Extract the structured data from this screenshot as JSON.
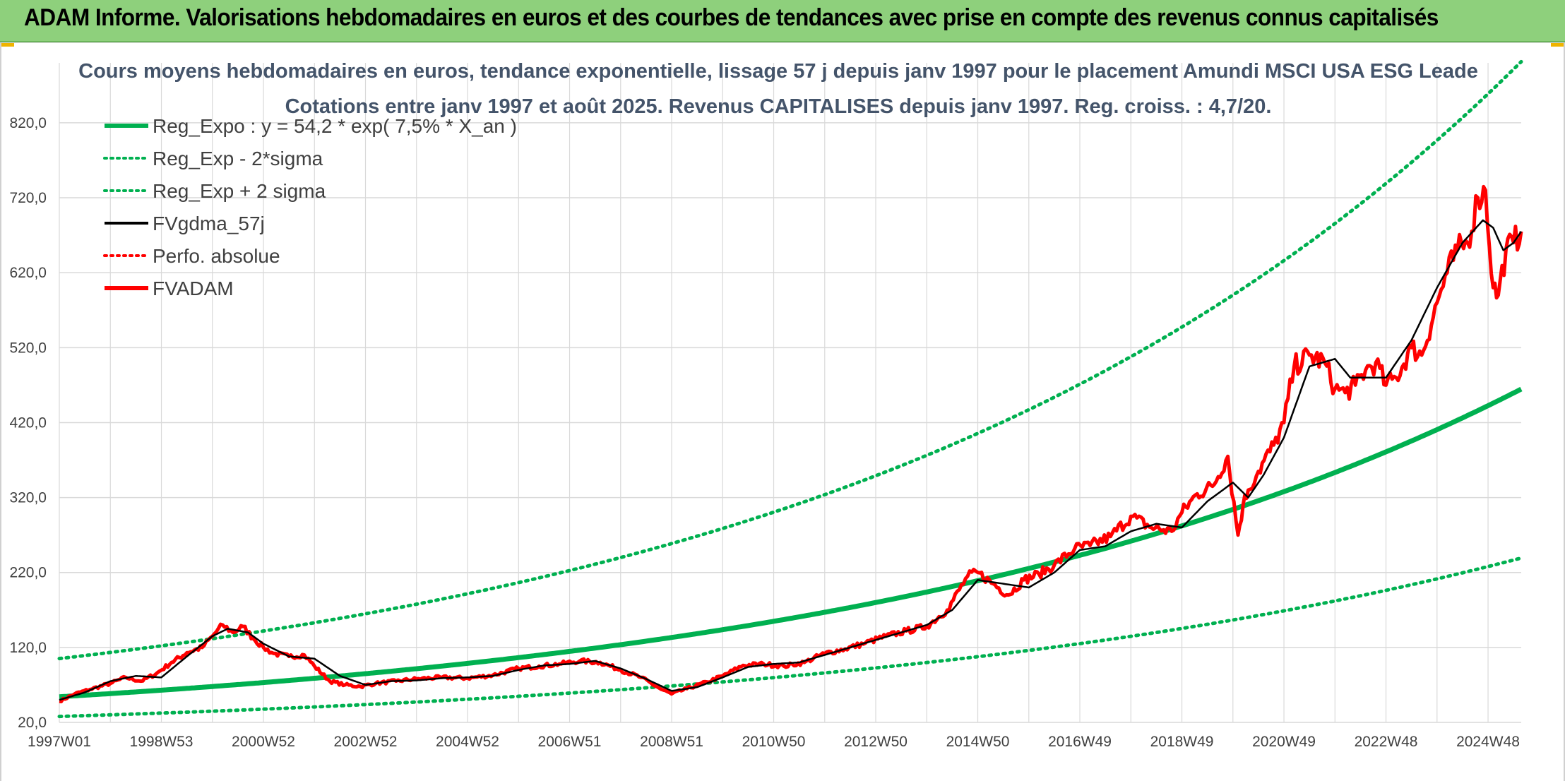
{
  "header": {
    "title": "ADAM Informe. Valorisations hebdomadaires en euros et des courbes de tendances avec prise en compte des revenus connus capitalisés"
  },
  "colors": {
    "header_bg": "#8ed07c",
    "regression": "#00b050",
    "price": "#ff0000",
    "smoothed": "#000000",
    "grid": "#d9d9d9",
    "title_text": "#44546a"
  },
  "chart_data": {
    "type": "line",
    "title": "Cours moyens hebdomadaires en euros, tendance exponentielle, lissage 57 j depuis janv 1997 pour le placement Amundi MSCI USA ESG Leade",
    "subtitle": "Cotations entre janv 1997 et août 2025. Revenus CAPITALISES depuis janv 1997. Reg. croiss. : 4,7/20.",
    "xlabel": "",
    "ylabel": "",
    "ylim": [
      20,
      900
    ],
    "xlim": [
      1997.0,
      2025.65
    ],
    "grid": true,
    "legend_position": "top-left",
    "yticks": [
      "20,0",
      "120,0",
      "220,0",
      "320,0",
      "420,0",
      "520,0",
      "620,0",
      "720,0",
      "820,0"
    ],
    "ytick_values": [
      20,
      120,
      220,
      320,
      420,
      520,
      620,
      720,
      820
    ],
    "xticks": [
      "1997W01",
      "1998W53",
      "2000W52",
      "2002W52",
      "2004W52",
      "2006W51",
      "2008W51",
      "2010W50",
      "2012W50",
      "2014W50",
      "2016W49",
      "2018W49",
      "2020W49",
      "2022W48",
      "2024W48"
    ],
    "xtick_values": [
      1997.0,
      1999.0,
      2001.0,
      2003.0,
      2005.0,
      2007.0,
      2009.0,
      2011.0,
      2013.0,
      2015.0,
      2017.0,
      2019.0,
      2021.0,
      2023.0,
      2025.0
    ],
    "regression": {
      "a": 54.2,
      "rate": 0.075,
      "sigma_lower_factor": 0.515,
      "sigma_upper_factor": 1.94
    },
    "series": [
      {
        "name": "Reg_Expo : y = 54,2 * exp( 7,5% *  X_an )",
        "style": "solid-thick",
        "color": "#00b050"
      },
      {
        "name": "Reg_Exp - 2*sigma",
        "style": "dotted",
        "color": "#00b050"
      },
      {
        "name": "Reg_Exp + 2 sigma",
        "style": "dotted",
        "color": "#00b050"
      },
      {
        "name": "FVgdma_57j",
        "style": "solid",
        "color": "#000000",
        "x": [
          1997.0,
          1997.5,
          1998.0,
          1998.5,
          1999.0,
          1999.5,
          2000.0,
          2000.3,
          2000.7,
          2001.0,
          2001.5,
          2002.0,
          2002.5,
          2003.0,
          2003.5,
          2004.0,
          2004.5,
          2005.0,
          2005.5,
          2006.0,
          2006.5,
          2007.0,
          2007.5,
          2008.0,
          2008.5,
          2009.0,
          2009.5,
          2010.0,
          2010.5,
          2011.0,
          2011.5,
          2012.0,
          2012.5,
          2013.0,
          2013.5,
          2014.0,
          2014.5,
          2015.0,
          2015.5,
          2016.0,
          2016.5,
          2017.0,
          2017.5,
          2018.0,
          2018.5,
          2019.0,
          2019.5,
          2020.0,
          2020.3,
          2020.6,
          2021.0,
          2021.5,
          2022.0,
          2022.3,
          2022.6,
          2023.0,
          2023.5,
          2024.0,
          2024.5,
          2024.9,
          2025.1,
          2025.3,
          2025.5,
          2025.65
        ],
        "values": [
          50,
          60,
          75,
          82,
          80,
          108,
          135,
          145,
          140,
          125,
          108,
          105,
          82,
          70,
          75,
          76,
          79,
          80,
          82,
          90,
          96,
          98,
          102,
          92,
          78,
          62,
          67,
          80,
          94,
          98,
          100,
          110,
          120,
          130,
          140,
          150,
          170,
          210,
          205,
          200,
          220,
          250,
          255,
          275,
          285,
          280,
          315,
          340,
          320,
          350,
          400,
          495,
          505,
          480,
          480,
          480,
          530,
          600,
          660,
          690,
          680,
          650,
          660,
          675
        ]
      },
      {
        "name": "Perfo. absolue",
        "style": "dotted",
        "color": "#ff0000"
      },
      {
        "name": "FVADAM",
        "style": "solid-thick",
        "color": "#ff0000",
        "x": [
          1997.0,
          1997.3,
          1997.6,
          1998.0,
          1998.3,
          1998.6,
          1998.9,
          1999.2,
          1999.5,
          1999.8,
          2000.0,
          2000.2,
          2000.4,
          2000.6,
          2000.8,
          2001.0,
          2001.2,
          2001.5,
          2001.8,
          2002.0,
          2002.3,
          2002.6,
          2002.9,
          2003.2,
          2003.6,
          2004.0,
          2004.5,
          2005.0,
          2005.5,
          2006.0,
          2006.4,
          2006.8,
          2007.2,
          2007.6,
          2008.0,
          2008.4,
          2008.8,
          2009.0,
          2009.3,
          2009.7,
          2010.0,
          2010.4,
          2010.8,
          2011.2,
          2011.6,
          2012.0,
          2012.4,
          2012.8,
          2013.2,
          2013.6,
          2014.0,
          2014.4,
          2014.8,
          2015.0,
          2015.3,
          2015.6,
          2015.9,
          2016.2,
          2016.5,
          2016.9,
          2017.2,
          2017.6,
          2018.0,
          2018.4,
          2018.8,
          2019.0,
          2019.3,
          2019.6,
          2019.9,
          2020.1,
          2020.2,
          2020.3,
          2020.5,
          2020.8,
          2021.0,
          2021.2,
          2021.5,
          2021.8,
          2022.0,
          2022.2,
          2022.4,
          2022.6,
          2022.8,
          2023.0,
          2023.2,
          2023.5,
          2023.7,
          2024.0,
          2024.2,
          2024.4,
          2024.6,
          2024.8,
          2024.95,
          2025.1,
          2025.2,
          2025.35,
          2025.5,
          2025.65
        ],
        "values": [
          48,
          58,
          64,
          72,
          80,
          75,
          85,
          100,
          113,
          120,
          135,
          150,
          140,
          148,
          132,
          120,
          112,
          108,
          110,
          95,
          75,
          70,
          68,
          72,
          75,
          78,
          80,
          79,
          83,
          92,
          95,
          98,
          102,
          100,
          90,
          80,
          64,
          58,
          65,
          74,
          82,
          96,
          98,
          95,
          100,
          112,
          118,
          126,
          135,
          142,
          148,
          170,
          215,
          220,
          205,
          190,
          210,
          218,
          230,
          252,
          256,
          268,
          295,
          280,
          275,
          300,
          325,
          335,
          375,
          270,
          310,
          330,
          355,
          390,
          420,
          495,
          510,
          500,
          465,
          460,
          470,
          490,
          500,
          470,
          480,
          520,
          510,
          580,
          620,
          650,
          660,
          720,
          730,
          600,
          590,
          650,
          660,
          675
        ]
      }
    ]
  }
}
